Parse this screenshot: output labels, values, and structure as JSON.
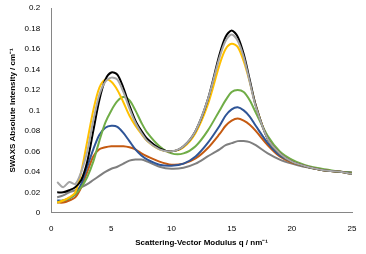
{
  "chart_data": {
    "type": "line",
    "x_label": "Scattering-Vector Modulus q / nm⁻¹",
    "y_label": "SWAXS Absolute Intensity / cm⁻¹",
    "x": [
      0.5,
      1,
      1.5,
      2,
      2.5,
      3,
      3.5,
      4,
      4.5,
      5,
      5.5,
      6,
      6.5,
      7,
      7.5,
      8,
      9,
      10,
      11,
      12,
      13,
      14,
      14.5,
      15,
      15.5,
      16,
      16.5,
      17,
      18,
      19,
      20,
      21,
      22,
      23,
      24,
      25
    ],
    "series": [
      {
        "color": "#a6a6a6",
        "values": [
          0.03,
          0.025,
          0.03,
          0.028,
          0.04,
          0.06,
          0.09,
          0.115,
          0.128,
          0.132,
          0.13,
          0.118,
          0.102,
          0.088,
          0.078,
          0.07,
          0.062,
          0.06,
          0.065,
          0.08,
          0.11,
          0.152,
          0.168,
          0.174,
          0.168,
          0.152,
          0.128,
          0.104,
          0.072,
          0.058,
          0.05,
          0.046,
          0.043,
          0.041,
          0.04,
          0.038
        ]
      },
      {
        "color": "#000000",
        "values": [
          0.02,
          0.02,
          0.022,
          0.025,
          0.032,
          0.05,
          0.08,
          0.11,
          0.13,
          0.137,
          0.135,
          0.122,
          0.105,
          0.09,
          0.08,
          0.072,
          0.063,
          0.06,
          0.065,
          0.08,
          0.11,
          0.155,
          0.172,
          0.178,
          0.172,
          0.155,
          0.13,
          0.105,
          0.072,
          0.058,
          0.05,
          0.046,
          0.043,
          0.041,
          0.04,
          0.038
        ]
      },
      {
        "color": "#ffc000",
        "values": [
          0.01,
          0.012,
          0.015,
          0.02,
          0.04,
          0.07,
          0.1,
          0.122,
          0.13,
          0.128,
          0.12,
          0.108,
          0.095,
          0.085,
          0.077,
          0.07,
          0.062,
          0.06,
          0.064,
          0.078,
          0.105,
          0.145,
          0.16,
          0.165,
          0.162,
          0.148,
          0.128,
          0.105,
          0.072,
          0.058,
          0.05,
          0.046,
          0.043,
          0.041,
          0.04,
          0.038
        ]
      },
      {
        "color": "#70ad47",
        "values": [
          0.01,
          0.012,
          0.014,
          0.018,
          0.025,
          0.035,
          0.05,
          0.07,
          0.088,
          0.1,
          0.109,
          0.113,
          0.11,
          0.1,
          0.088,
          0.078,
          0.065,
          0.058,
          0.058,
          0.065,
          0.08,
          0.1,
          0.11,
          0.118,
          0.12,
          0.118,
          0.11,
          0.098,
          0.075,
          0.06,
          0.052,
          0.047,
          0.044,
          0.042,
          0.04,
          0.039
        ]
      },
      {
        "color": "#2f5597",
        "values": [
          0.012,
          0.012,
          0.014,
          0.018,
          0.028,
          0.045,
          0.062,
          0.076,
          0.083,
          0.085,
          0.084,
          0.078,
          0.07,
          0.062,
          0.056,
          0.052,
          0.047,
          0.046,
          0.048,
          0.055,
          0.068,
          0.085,
          0.095,
          0.101,
          0.103,
          0.1,
          0.094,
          0.085,
          0.068,
          0.056,
          0.05,
          0.046,
          0.043,
          0.041,
          0.04,
          0.039
        ]
      },
      {
        "color": "#c55a11",
        "values": [
          0.01,
          0.01,
          0.012,
          0.015,
          0.025,
          0.04,
          0.055,
          0.062,
          0.064,
          0.065,
          0.065,
          0.065,
          0.064,
          0.062,
          0.058,
          0.055,
          0.05,
          0.047,
          0.048,
          0.053,
          0.063,
          0.077,
          0.085,
          0.09,
          0.092,
          0.09,
          0.086,
          0.08,
          0.066,
          0.055,
          0.049,
          0.046,
          0.043,
          0.041,
          0.04,
          0.039
        ]
      },
      {
        "color": "#7f7f7f",
        "values": [
          0.015,
          0.017,
          0.02,
          0.022,
          0.025,
          0.028,
          0.032,
          0.036,
          0.04,
          0.043,
          0.045,
          0.048,
          0.051,
          0.052,
          0.052,
          0.05,
          0.045,
          0.043,
          0.044,
          0.048,
          0.055,
          0.062,
          0.066,
          0.068,
          0.07,
          0.07,
          0.069,
          0.066,
          0.058,
          0.052,
          0.048,
          0.045,
          0.043,
          0.041,
          0.04,
          0.039
        ]
      }
    ],
    "xlim": [
      0,
      25
    ],
    "xticks": [
      0,
      5,
      10,
      15,
      20,
      25
    ],
    "ylim": [
      0,
      0.2
    ],
    "yticks": [
      0,
      0.02,
      0.04,
      0.06,
      0.08,
      0.1,
      0.12,
      0.14,
      0.16,
      0.18,
      0.2
    ],
    "grid": false
  }
}
